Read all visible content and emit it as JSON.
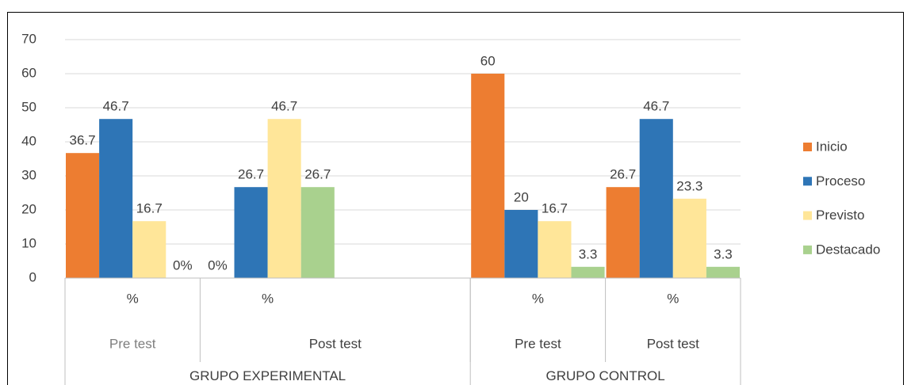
{
  "chart_data": {
    "type": "bar",
    "categories": [
      "%",
      "%",
      null,
      "%",
      "%"
    ],
    "category_levels": [
      [
        "Pre test",
        "Post test",
        null,
        "Pre test",
        "Post test"
      ],
      [
        "GRUPO EXPERIMENTAL",
        null,
        null,
        "GRUPO CONTROL",
        null
      ]
    ],
    "series": [
      {
        "name": "Inicio",
        "color": "#ed7d31",
        "values": [
          36.7,
          0,
          null,
          60,
          26.7
        ],
        "value_labels": [
          "36.7",
          "0%",
          null,
          "60",
          "26.7"
        ]
      },
      {
        "name": "Proceso",
        "color": "#2e75b6",
        "values": [
          46.7,
          26.7,
          null,
          20,
          46.7
        ]
      },
      {
        "name": "Previsto",
        "color": "#ffe699",
        "values": [
          16.7,
          46.7,
          null,
          16.7,
          23.3
        ]
      },
      {
        "name": "Destacado",
        "color": "#a9d18e",
        "values": [
          0,
          26.7,
          null,
          3.3,
          3.3
        ],
        "value_labels": [
          "0%",
          "26.7",
          null,
          "3.3",
          "3.3"
        ]
      }
    ],
    "ylim": [
      0,
      70
    ],
    "yticks": [
      0,
      10,
      20,
      30,
      40,
      50,
      60,
      70
    ],
    "grid": true,
    "legend": "right"
  }
}
